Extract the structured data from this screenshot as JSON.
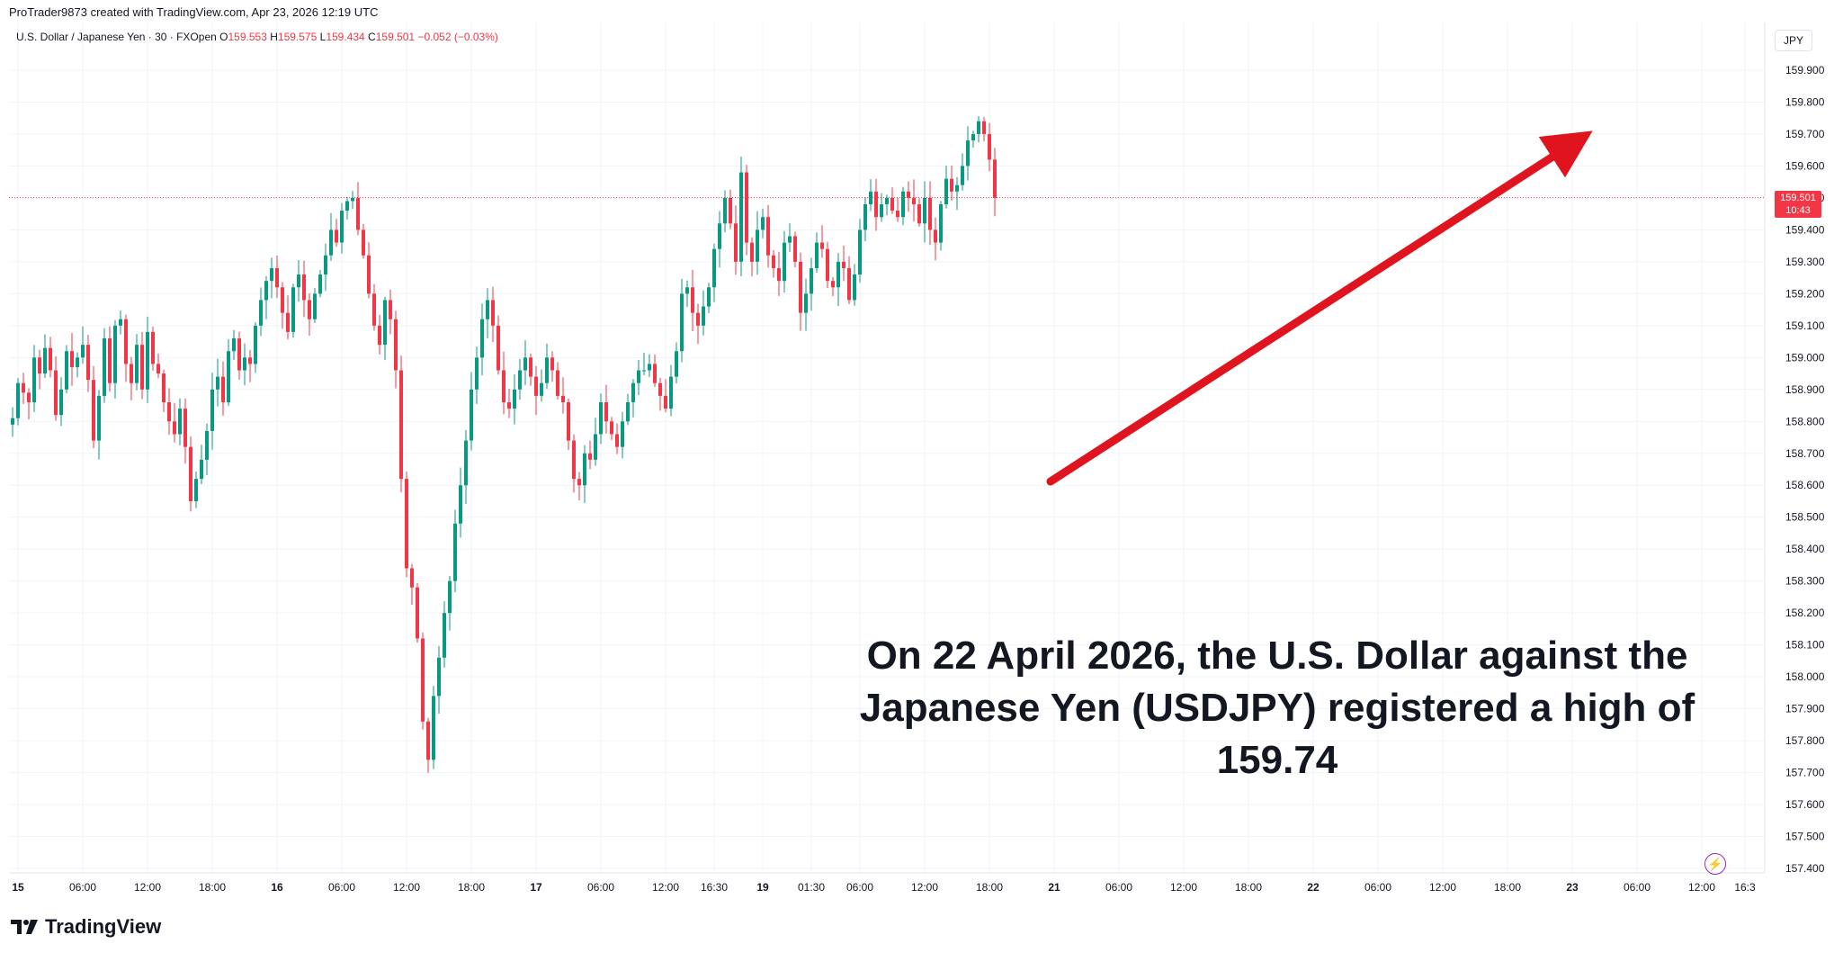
{
  "header": {
    "credit": "ProTrader9873 created with TradingView.com, Apr 23, 2026 12:19 UTC"
  },
  "legend": {
    "symbol": "U.S. Dollar / Japanese Yen · 30 · FXOpen",
    "o_label": "O",
    "o_value": "159.553",
    "h_label": "H",
    "h_value": "159.575",
    "l_label": "L",
    "l_value": "159.434",
    "c_label": "C",
    "c_value": "159.501",
    "change": "−0.052 (−0.03%)"
  },
  "currency_button": "JPY",
  "last_price": {
    "price": "159.501",
    "countdown": "10:43"
  },
  "annotation": {
    "line1": "On 22 April 2026, the U.S. Dollar against the",
    "line2": "Japanese Yen (USDJPY) registered a high of 159.74"
  },
  "brand": {
    "name": "TradingView"
  },
  "colors": {
    "up": "#089981",
    "down": "#f23645",
    "arrow": "#e0141e",
    "grid": "#f0f3fa"
  },
  "chart_data": {
    "type": "candlestick",
    "symbol": "USDJPY",
    "timeframe": "30",
    "ylim": [
      157.35,
      159.98
    ],
    "y_ticks": [
      "159.900",
      "159.800",
      "159.700",
      "159.600",
      "159.500",
      "159.400",
      "159.300",
      "159.200",
      "159.100",
      "159.000",
      "158.900",
      "158.800",
      "158.700",
      "158.600",
      "158.500",
      "158.400",
      "158.300",
      "158.200",
      "158.100",
      "158.000",
      "157.900",
      "157.800",
      "157.700",
      "157.600",
      "157.500",
      "157.400"
    ],
    "x_ticks": [
      {
        "label": "15",
        "bar": 1,
        "bold": true
      },
      {
        "label": "06:00",
        "bar": 13
      },
      {
        "label": "12:00",
        "bar": 25
      },
      {
        "label": "18:00",
        "bar": 37
      },
      {
        "label": "16",
        "bar": 49,
        "bold": true
      },
      {
        "label": "06:00",
        "bar": 61
      },
      {
        "label": "12:00",
        "bar": 73
      },
      {
        "label": "18:00",
        "bar": 85
      },
      {
        "label": "17",
        "bar": 97,
        "bold": true
      },
      {
        "label": "06:00",
        "bar": 109
      },
      {
        "label": "12:00",
        "bar": 121
      },
      {
        "label": "16:30",
        "bar": 130
      },
      {
        "label": "19",
        "bar": 139,
        "bold": true
      },
      {
        "label": "01:30",
        "bar": 148
      },
      {
        "label": "06:00",
        "bar": 157
      },
      {
        "label": "12:00",
        "bar": 169
      },
      {
        "label": "18:00",
        "bar": 181
      },
      {
        "label": "21",
        "bar": 193,
        "bold": true
      },
      {
        "label": "06:00",
        "bar": 205
      },
      {
        "label": "12:00",
        "bar": 217
      },
      {
        "label": "18:00",
        "bar": 229
      },
      {
        "label": "22",
        "bar": 241,
        "bold": true
      },
      {
        "label": "06:00",
        "bar": 253
      },
      {
        "label": "12:00",
        "bar": 265
      },
      {
        "label": "18:00",
        "bar": 277
      },
      {
        "label": "23",
        "bar": 289,
        "bold": true
      },
      {
        "label": "06:00",
        "bar": 301
      },
      {
        "label": "12:00",
        "bar": 313
      },
      {
        "label": "16:3",
        "bar": 321
      }
    ],
    "close_path": [
      158.81,
      158.92,
      158.89,
      158.86,
      159.0,
      158.95,
      159.03,
      158.96,
      158.82,
      158.9,
      159.02,
      158.97,
      159.0,
      159.04,
      158.93,
      158.74,
      158.88,
      159.06,
      158.92,
      159.1,
      159.12,
      158.98,
      158.92,
      159.04,
      158.9,
      159.08,
      158.98,
      158.95,
      158.86,
      158.8,
      158.76,
      158.84,
      158.72,
      158.55,
      158.62,
      158.68,
      158.77,
      158.9,
      158.94,
      158.86,
      159.02,
      159.06,
      158.96,
      159.0,
      158.98,
      159.1,
      159.18,
      159.24,
      159.28,
      159.22,
      159.14,
      159.08,
      159.22,
      159.26,
      159.18,
      159.12,
      159.2,
      159.26,
      159.32,
      159.4,
      159.36,
      159.46,
      159.49,
      159.5,
      159.4,
      159.32,
      159.2,
      159.1,
      159.04,
      159.18,
      159.12,
      158.96,
      158.62,
      158.34,
      158.28,
      158.12,
      157.86,
      157.74,
      157.94,
      158.06,
      158.2,
      158.3,
      158.48,
      158.6,
      158.74,
      158.9,
      159.0,
      159.12,
      159.18,
      159.1,
      158.96,
      158.86,
      158.84,
      158.9,
      158.96,
      159.0,
      158.94,
      158.88,
      158.92,
      159.0,
      158.96,
      158.88,
      158.86,
      158.74,
      158.62,
      158.6,
      158.7,
      158.68,
      158.76,
      158.86,
      158.8,
      158.76,
      158.72,
      158.8,
      158.86,
      158.92,
      158.96,
      158.96,
      158.98,
      158.92,
      158.88,
      158.84,
      158.94,
      159.02,
      159.2,
      159.22,
      159.14,
      159.1,
      159.16,
      159.22,
      159.34,
      159.42,
      159.5,
      159.42,
      159.3,
      159.58,
      159.36,
      159.3,
      159.4,
      159.44,
      159.32,
      159.28,
      159.24,
      159.36,
      159.38,
      159.3,
      159.14,
      159.2,
      159.28,
      159.36,
      159.34,
      159.24,
      159.22,
      159.3,
      159.28,
      159.18,
      159.26,
      159.4,
      159.48,
      159.52,
      159.44,
      159.48,
      159.5,
      159.46,
      159.44,
      159.52,
      159.5,
      159.48,
      159.42,
      159.5,
      159.4,
      159.36,
      159.48,
      159.56,
      159.52,
      159.54,
      159.6,
      159.68,
      159.7,
      159.74,
      159.7,
      159.62,
      159.5
    ]
  }
}
